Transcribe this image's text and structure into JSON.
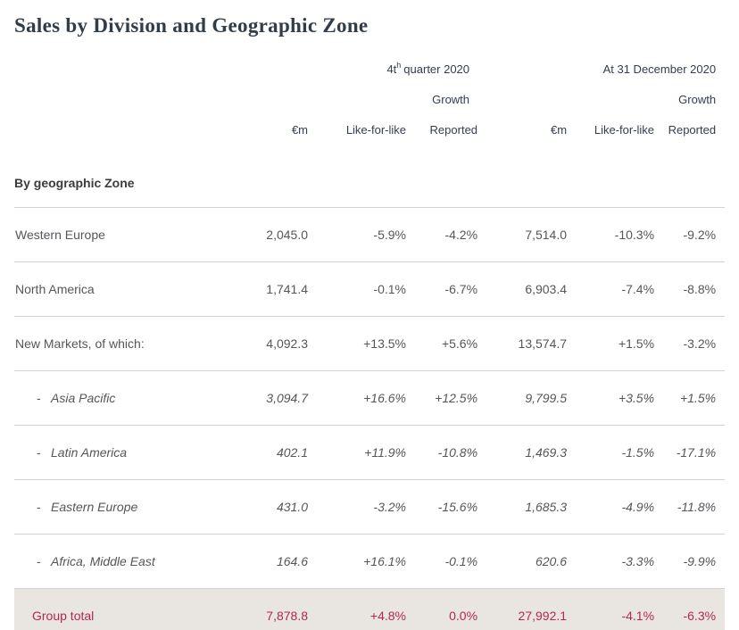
{
  "page_title": "Sales by Division and Geographic Zone",
  "chart_data": {
    "type": "table",
    "title": "Sales by Division and Geographic Zone",
    "header": {
      "group_q4": {
        "prefix": "4t",
        "sup": "h",
        "suffix": "quarter 2020"
      },
      "group_fy": "At 31 December 2020",
      "growth": "Growth",
      "columns": [
        "€m",
        "Like-for-like",
        "Reported",
        "€m",
        "Like-for-like",
        "Reported"
      ]
    },
    "section_label": "By geographic Zone",
    "sub_row_dash": "-",
    "rows": [
      {
        "label": "Western Europe",
        "sub": false,
        "values": [
          "2,045.0",
          "-5.9%",
          "-4.2%",
          "7,514.0",
          "-10.3%",
          "-9.2%"
        ]
      },
      {
        "label": "North America",
        "sub": false,
        "values": [
          "1,741.4",
          "-0.1%",
          "-6.7%",
          "6,903.4",
          "-7.4%",
          "-8.8%"
        ]
      },
      {
        "label": "New Markets, of which:",
        "sub": false,
        "values": [
          "4,092.3",
          "+13.5%",
          "+5.6%",
          "13,574.7",
          "+1.5%",
          "-3.2%"
        ]
      },
      {
        "label": "Asia Pacific",
        "sub": true,
        "values": [
          "3,094.7",
          "+16.6%",
          "+12.5%",
          "9,799.5",
          "+3.5%",
          "+1.5%"
        ]
      },
      {
        "label": "Latin America",
        "sub": true,
        "values": [
          "402.1",
          "+11.9%",
          "-10.8%",
          "1,469.3",
          "-1.5%",
          "-17.1%"
        ]
      },
      {
        "label": "Eastern Europe",
        "sub": true,
        "values": [
          "431.0",
          "-3.2%",
          "-15.6%",
          "1,685.3",
          "-4.9%",
          "-11.8%"
        ]
      },
      {
        "label": "Africa, Middle East",
        "sub": true,
        "values": [
          "164.6",
          "+16.1%",
          "-0.1%",
          "620.6",
          "-3.3%",
          "-9.9%"
        ]
      }
    ],
    "total_row": {
      "label": "Group total",
      "values": [
        "7,878.8",
        "+4.8%",
        "0.0%",
        "27,992.1",
        "-4.1%",
        "-6.3%"
      ]
    }
  },
  "colors": {
    "title_text": "#313d49",
    "header_text": "#333e4f",
    "body_text": "#55565a",
    "rule_line": "#d2d2d2",
    "total_row_bg": "#e9e5e0",
    "accent_red": "#b12a4d"
  }
}
